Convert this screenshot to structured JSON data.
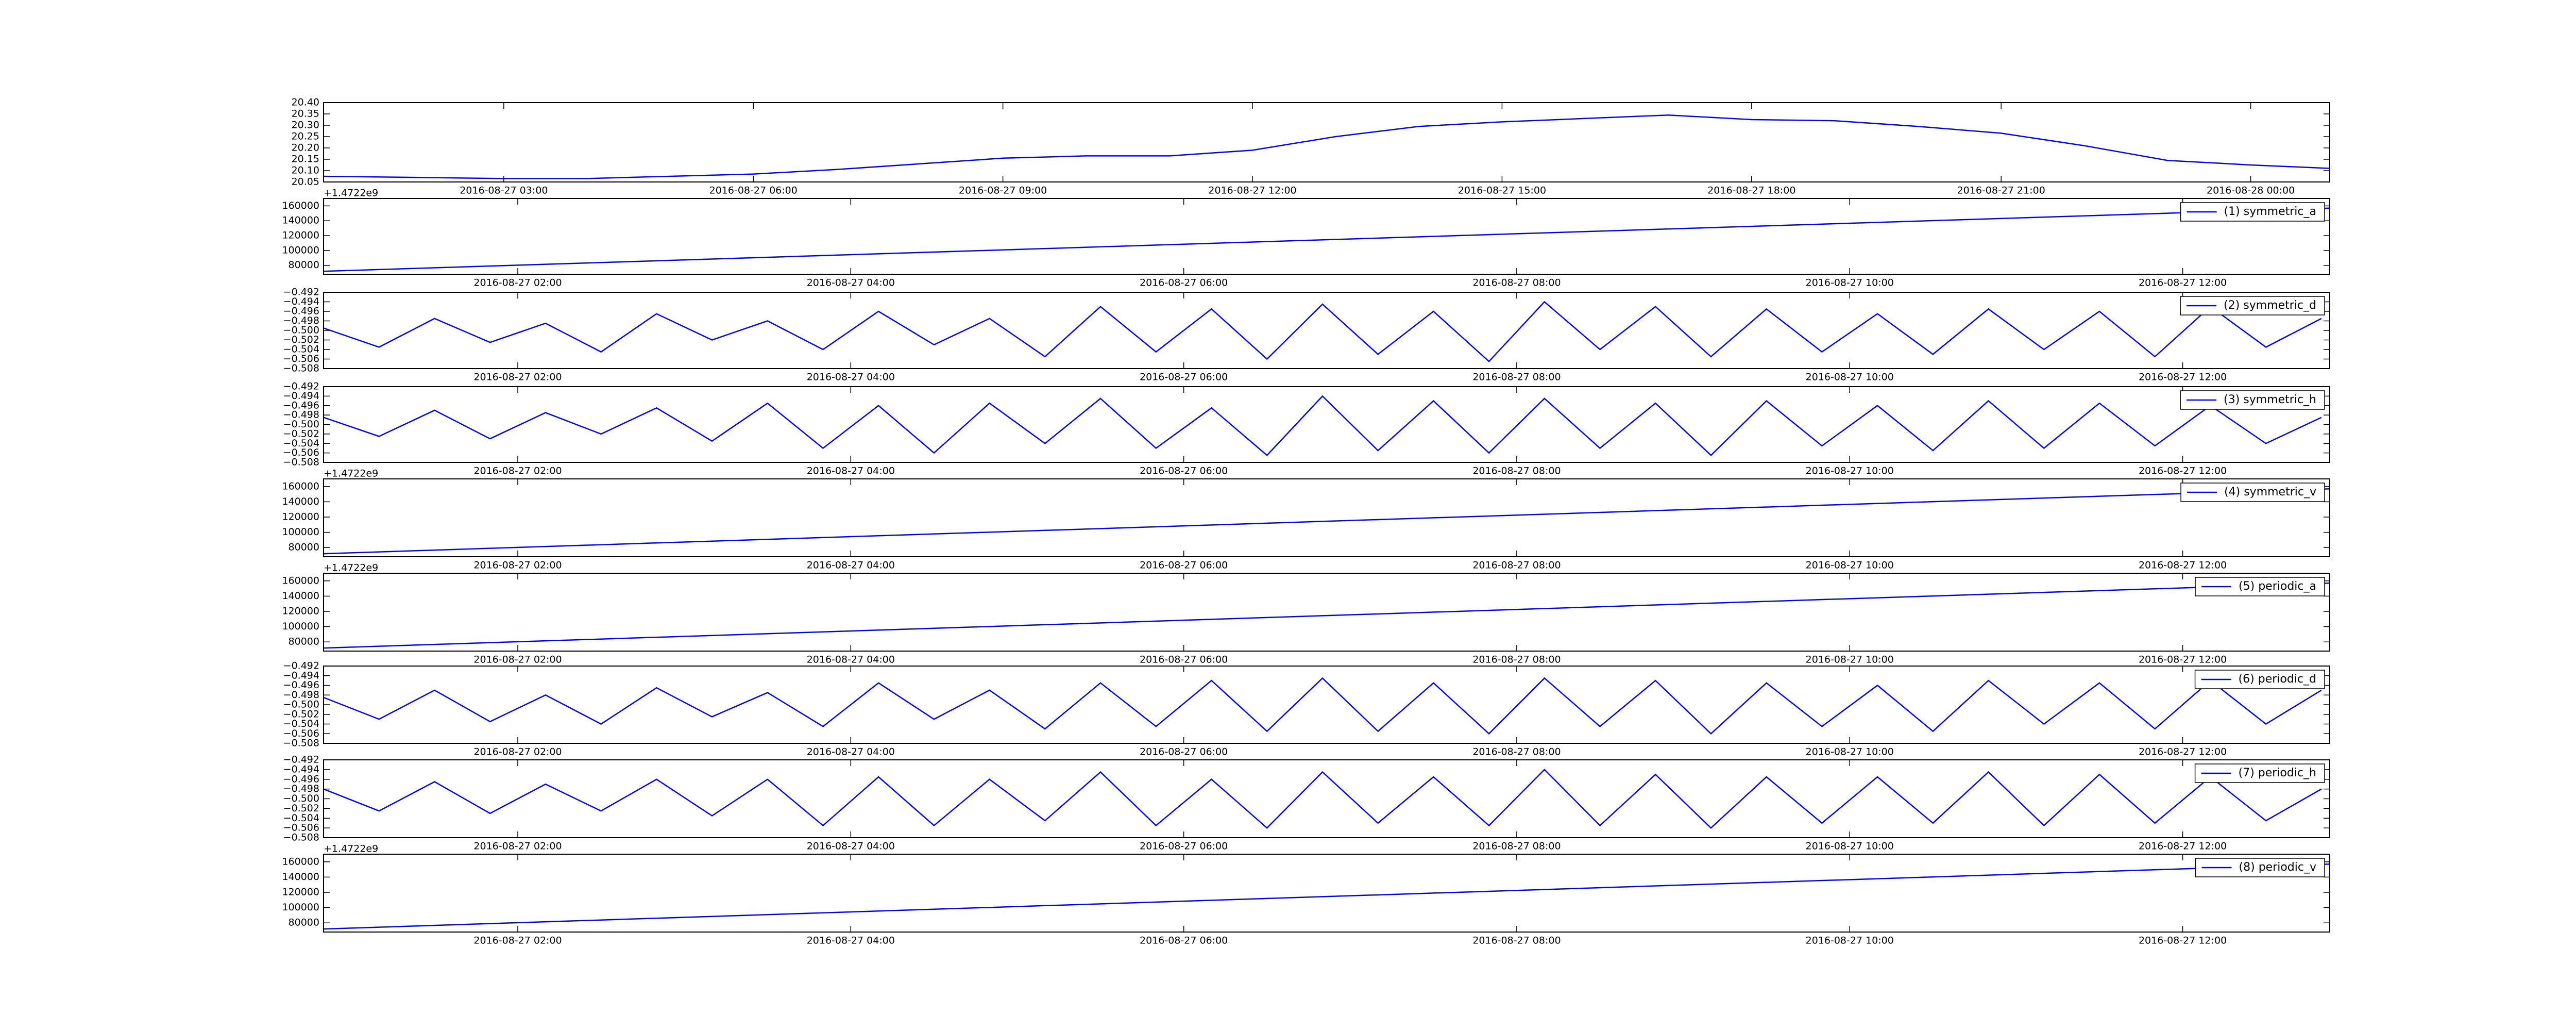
{
  "chart_data": [
    {
      "type": "line",
      "x": [
        "2016-08-27 00:50",
        "2016-08-27 02:00",
        "2016-08-27 03:00",
        "2016-08-27 04:00",
        "2016-08-27 05:00",
        "2016-08-27 06:00",
        "2016-08-27 07:00",
        "2016-08-27 08:00",
        "2016-08-27 09:00",
        "2016-08-27 10:00",
        "2016-08-27 11:00",
        "2016-08-27 12:00",
        "2016-08-27 13:00",
        "2016-08-27 14:00",
        "2016-08-27 15:00",
        "2016-08-27 16:00",
        "2016-08-27 17:00",
        "2016-08-27 18:00",
        "2016-08-27 19:00",
        "2016-08-27 20:00",
        "2016-08-27 21:00",
        "2016-08-27 22:00",
        "2016-08-27 23:00",
        "2016-08-28 00:00",
        "2016-08-28 00:57"
      ],
      "series": [
        {
          "color": "#0000ff",
          "values": [
            20.075,
            20.07,
            20.065,
            20.065,
            20.075,
            20.085,
            20.105,
            20.13,
            20.155,
            20.165,
            20.165,
            20.19,
            20.25,
            20.295,
            20.315,
            20.33,
            20.345,
            20.325,
            20.32,
            20.295,
            20.265,
            20.21,
            20.145,
            20.125,
            20.11
          ]
        }
      ],
      "xlim": [
        "2016-08-27 00:50",
        "2016-08-28 00:57"
      ],
      "ylim": [
        20.05,
        20.4
      ],
      "xticks": [
        "2016-08-27 03:00",
        "2016-08-27 06:00",
        "2016-08-27 09:00",
        "2016-08-27 12:00",
        "2016-08-27 15:00",
        "2016-08-27 18:00",
        "2016-08-27 21:00",
        "2016-08-28 00:00"
      ],
      "yticks": [
        20.05,
        {
          "value": 20.1,
          "label": "20.10"
        },
        20.15,
        {
          "value": 20.2,
          "label": "20.20"
        },
        20.25,
        {
          "value": 20.3,
          "label": "20.30"
        },
        20.35,
        {
          "value": 20.4,
          "label": "20.40"
        }
      ]
    },
    {
      "type": "line",
      "x": [
        "2016-08-27 00:50",
        "2016-08-27 12:53"
      ],
      "series": [
        {
          "name": "(1) symmetric_a",
          "color": "#0000ff",
          "values": [
            72000,
            157000
          ]
        }
      ],
      "xlim": [
        "2016-08-27 00:50",
        "2016-08-27 12:53"
      ],
      "ylim": [
        68000,
        170000
      ],
      "xticks": [
        "2016-08-27 02:00",
        "2016-08-27 04:00",
        "2016-08-27 06:00",
        "2016-08-27 08:00",
        "2016-08-27 10:00",
        "2016-08-27 12:00"
      ],
      "yticks": [
        80000,
        100000,
        120000,
        140000,
        160000
      ],
      "y_offset_label": "+1.4722e9",
      "legend": "upper right"
    },
    {
      "type": "line",
      "x": [
        "2016-08-27 00:50",
        "2016-08-27 01:10",
        "2016-08-27 01:30",
        "2016-08-27 01:50",
        "2016-08-27 02:10",
        "2016-08-27 02:30",
        "2016-08-27 02:50",
        "2016-08-27 03:10",
        "2016-08-27 03:30",
        "2016-08-27 03:50",
        "2016-08-27 04:10",
        "2016-08-27 04:30",
        "2016-08-27 04:50",
        "2016-08-27 05:10",
        "2016-08-27 05:30",
        "2016-08-27 05:50",
        "2016-08-27 06:10",
        "2016-08-27 06:30",
        "2016-08-27 06:50",
        "2016-08-27 07:10",
        "2016-08-27 07:30",
        "2016-08-27 07:50",
        "2016-08-27 08:10",
        "2016-08-27 08:30",
        "2016-08-27 08:50",
        "2016-08-27 09:10",
        "2016-08-27 09:30",
        "2016-08-27 09:50",
        "2016-08-27 10:10",
        "2016-08-27 10:30",
        "2016-08-27 10:50",
        "2016-08-27 11:10",
        "2016-08-27 11:30",
        "2016-08-27 11:50",
        "2016-08-27 12:10",
        "2016-08-27 12:30",
        "2016-08-27 12:50"
      ],
      "series": [
        {
          "name": "(2) symmetric_d",
          "color": "#0000ff",
          "values": [
            -0.4995,
            -0.5035,
            -0.4975,
            -0.5025,
            -0.4985,
            -0.5045,
            -0.4965,
            -0.502,
            -0.498,
            -0.504,
            -0.496,
            -0.503,
            -0.4975,
            -0.5055,
            -0.495,
            -0.5045,
            -0.4955,
            -0.506,
            -0.4945,
            -0.505,
            -0.496,
            -0.5065,
            -0.494,
            -0.504,
            -0.495,
            -0.5055,
            -0.4955,
            -0.5045,
            -0.4965,
            -0.505,
            -0.4955,
            -0.504,
            -0.496,
            -0.5055,
            -0.495,
            -0.5035,
            -0.4975
          ]
        }
      ],
      "xlim": [
        "2016-08-27 00:50",
        "2016-08-27 12:53"
      ],
      "ylim": [
        -0.508,
        -0.492
      ],
      "xticks": [
        "2016-08-27 02:00",
        "2016-08-27 04:00",
        "2016-08-27 06:00",
        "2016-08-27 08:00",
        "2016-08-27 10:00",
        "2016-08-27 12:00"
      ],
      "yticks": [
        {
          "value": -0.492,
          "label": "−0.492"
        },
        {
          "value": -0.494,
          "label": "−0.494"
        },
        {
          "value": -0.496,
          "label": "−0.496"
        },
        {
          "value": -0.498,
          "label": "−0.498"
        },
        {
          "value": -0.5,
          "label": "−0.500"
        },
        {
          "value": -0.502,
          "label": "−0.502"
        },
        {
          "value": -0.504,
          "label": "−0.504"
        },
        {
          "value": -0.506,
          "label": "−0.506"
        },
        {
          "value": -0.508,
          "label": "−0.508"
        }
      ],
      "legend": "upper right"
    },
    {
      "type": "line",
      "x": [
        "2016-08-27 00:50",
        "2016-08-27 01:10",
        "2016-08-27 01:30",
        "2016-08-27 01:50",
        "2016-08-27 02:10",
        "2016-08-27 02:30",
        "2016-08-27 02:50",
        "2016-08-27 03:10",
        "2016-08-27 03:30",
        "2016-08-27 03:50",
        "2016-08-27 04:10",
        "2016-08-27 04:30",
        "2016-08-27 04:50",
        "2016-08-27 05:10",
        "2016-08-27 05:30",
        "2016-08-27 05:50",
        "2016-08-27 06:10",
        "2016-08-27 06:30",
        "2016-08-27 06:50",
        "2016-08-27 07:10",
        "2016-08-27 07:30",
        "2016-08-27 07:50",
        "2016-08-27 08:10",
        "2016-08-27 08:30",
        "2016-08-27 08:50",
        "2016-08-27 09:10",
        "2016-08-27 09:30",
        "2016-08-27 09:50",
        "2016-08-27 10:10",
        "2016-08-27 10:30",
        "2016-08-27 10:50",
        "2016-08-27 11:10",
        "2016-08-27 11:30",
        "2016-08-27 11:50",
        "2016-08-27 12:10",
        "2016-08-27 12:30",
        "2016-08-27 12:50"
      ],
      "series": [
        {
          "name": "(3) symmetric_h",
          "color": "#0000ff",
          "values": [
            -0.4985,
            -0.5025,
            -0.497,
            -0.503,
            -0.4975,
            -0.502,
            -0.4965,
            -0.5035,
            -0.4955,
            -0.505,
            -0.496,
            -0.506,
            -0.4955,
            -0.504,
            -0.4945,
            -0.505,
            -0.4965,
            -0.5065,
            -0.494,
            -0.5055,
            -0.495,
            -0.506,
            -0.4945,
            -0.505,
            -0.4955,
            -0.5065,
            -0.495,
            -0.5045,
            -0.496,
            -0.5055,
            -0.495,
            -0.505,
            -0.4955,
            -0.5045,
            -0.496,
            -0.504,
            -0.4985
          ]
        }
      ],
      "xlim": [
        "2016-08-27 00:50",
        "2016-08-27 12:53"
      ],
      "ylim": [
        -0.508,
        -0.492
      ],
      "xticks": [
        "2016-08-27 02:00",
        "2016-08-27 04:00",
        "2016-08-27 06:00",
        "2016-08-27 08:00",
        "2016-08-27 10:00",
        "2016-08-27 12:00"
      ],
      "yticks": [
        {
          "value": -0.492,
          "label": "−0.492"
        },
        {
          "value": -0.494,
          "label": "−0.494"
        },
        {
          "value": -0.496,
          "label": "−0.496"
        },
        {
          "value": -0.498,
          "label": "−0.498"
        },
        {
          "value": -0.5,
          "label": "−0.500"
        },
        {
          "value": -0.502,
          "label": "−0.502"
        },
        {
          "value": -0.504,
          "label": "−0.504"
        },
        {
          "value": -0.506,
          "label": "−0.506"
        },
        {
          "value": -0.508,
          "label": "−0.508"
        }
      ],
      "legend": "upper right"
    },
    {
      "type": "line",
      "x": [
        "2016-08-27 00:50",
        "2016-08-27 12:53"
      ],
      "series": [
        {
          "name": "(4) symmetric_v",
          "color": "#0000ff",
          "values": [
            72000,
            157000
          ]
        }
      ],
      "xlim": [
        "2016-08-27 00:50",
        "2016-08-27 12:53"
      ],
      "ylim": [
        68000,
        170000
      ],
      "xticks": [
        "2016-08-27 02:00",
        "2016-08-27 04:00",
        "2016-08-27 06:00",
        "2016-08-27 08:00",
        "2016-08-27 10:00",
        "2016-08-27 12:00"
      ],
      "yticks": [
        80000,
        100000,
        120000,
        140000,
        160000
      ],
      "y_offset_label": "+1.4722e9",
      "legend": "upper right"
    },
    {
      "type": "line",
      "x": [
        "2016-08-27 00:50",
        "2016-08-27 12:53"
      ],
      "series": [
        {
          "name": "(5) periodic_a",
          "color": "#0000ff",
          "values": [
            72000,
            157000
          ]
        }
      ],
      "xlim": [
        "2016-08-27 00:50",
        "2016-08-27 12:53"
      ],
      "ylim": [
        68000,
        170000
      ],
      "xticks": [
        "2016-08-27 02:00",
        "2016-08-27 04:00",
        "2016-08-27 06:00",
        "2016-08-27 08:00",
        "2016-08-27 10:00",
        "2016-08-27 12:00"
      ],
      "yticks": [
        80000,
        100000,
        120000,
        140000,
        160000
      ],
      "y_offset_label": "+1.4722e9",
      "legend": "upper right"
    },
    {
      "type": "line",
      "x": [
        "2016-08-27 00:50",
        "2016-08-27 01:10",
        "2016-08-27 01:30",
        "2016-08-27 01:50",
        "2016-08-27 02:10",
        "2016-08-27 02:30",
        "2016-08-27 02:50",
        "2016-08-27 03:10",
        "2016-08-27 03:30",
        "2016-08-27 03:50",
        "2016-08-27 04:10",
        "2016-08-27 04:30",
        "2016-08-27 04:50",
        "2016-08-27 05:10",
        "2016-08-27 05:30",
        "2016-08-27 05:50",
        "2016-08-27 06:10",
        "2016-08-27 06:30",
        "2016-08-27 06:50",
        "2016-08-27 07:10",
        "2016-08-27 07:30",
        "2016-08-27 07:50",
        "2016-08-27 08:10",
        "2016-08-27 08:30",
        "2016-08-27 08:50",
        "2016-08-27 09:10",
        "2016-08-27 09:30",
        "2016-08-27 09:50",
        "2016-08-27 10:10",
        "2016-08-27 10:30",
        "2016-08-27 10:50",
        "2016-08-27 11:10",
        "2016-08-27 11:30",
        "2016-08-27 11:50",
        "2016-08-27 12:10",
        "2016-08-27 12:30",
        "2016-08-27 12:50"
      ],
      "series": [
        {
          "name": "(6) periodic_d",
          "color": "#0000ff",
          "values": [
            -0.4985,
            -0.503,
            -0.497,
            -0.5035,
            -0.498,
            -0.504,
            -0.4965,
            -0.5025,
            -0.4975,
            -0.5045,
            -0.4955,
            -0.503,
            -0.497,
            -0.505,
            -0.4955,
            -0.5045,
            -0.495,
            -0.5055,
            -0.4945,
            -0.5055,
            -0.4955,
            -0.506,
            -0.4945,
            -0.5045,
            -0.495,
            -0.506,
            -0.4955,
            -0.5045,
            -0.496,
            -0.5055,
            -0.495,
            -0.504,
            -0.4955,
            -0.505,
            -0.495,
            -0.504,
            -0.497
          ]
        }
      ],
      "xlim": [
        "2016-08-27 00:50",
        "2016-08-27 12:53"
      ],
      "ylim": [
        -0.508,
        -0.492
      ],
      "xticks": [
        "2016-08-27 02:00",
        "2016-08-27 04:00",
        "2016-08-27 06:00",
        "2016-08-27 08:00",
        "2016-08-27 10:00",
        "2016-08-27 12:00"
      ],
      "yticks": [
        {
          "value": -0.492,
          "label": "−0.492"
        },
        {
          "value": -0.494,
          "label": "−0.494"
        },
        {
          "value": -0.496,
          "label": "−0.496"
        },
        {
          "value": -0.498,
          "label": "−0.498"
        },
        {
          "value": -0.5,
          "label": "−0.500"
        },
        {
          "value": -0.502,
          "label": "−0.502"
        },
        {
          "value": -0.504,
          "label": "−0.504"
        },
        {
          "value": -0.506,
          "label": "−0.506"
        },
        {
          "value": -0.508,
          "label": "−0.508"
        }
      ],
      "legend": "upper right"
    },
    {
      "type": "line",
      "x": [
        "2016-08-27 00:50",
        "2016-08-27 01:10",
        "2016-08-27 01:30",
        "2016-08-27 01:50",
        "2016-08-27 02:10",
        "2016-08-27 02:30",
        "2016-08-27 02:50",
        "2016-08-27 03:10",
        "2016-08-27 03:30",
        "2016-08-27 03:50",
        "2016-08-27 04:10",
        "2016-08-27 04:30",
        "2016-08-27 04:50",
        "2016-08-27 05:10",
        "2016-08-27 05:30",
        "2016-08-27 05:50",
        "2016-08-27 06:10",
        "2016-08-27 06:30",
        "2016-08-27 06:50",
        "2016-08-27 07:10",
        "2016-08-27 07:30",
        "2016-08-27 07:50",
        "2016-08-27 08:10",
        "2016-08-27 08:30",
        "2016-08-27 08:50",
        "2016-08-27 09:10",
        "2016-08-27 09:30",
        "2016-08-27 09:50",
        "2016-08-27 10:10",
        "2016-08-27 10:30",
        "2016-08-27 10:50",
        "2016-08-27 11:10",
        "2016-08-27 11:30",
        "2016-08-27 11:50",
        "2016-08-27 12:10",
        "2016-08-27 12:30",
        "2016-08-27 12:50"
      ],
      "series": [
        {
          "name": "(7) periodic_h",
          "color": "#0000ff",
          "values": [
            -0.498,
            -0.5025,
            -0.4965,
            -0.503,
            -0.497,
            -0.5025,
            -0.496,
            -0.5035,
            -0.496,
            -0.5055,
            -0.4955,
            -0.5055,
            -0.496,
            -0.5045,
            -0.4945,
            -0.5055,
            -0.496,
            -0.506,
            -0.4945,
            -0.505,
            -0.4955,
            -0.5055,
            -0.494,
            -0.5055,
            -0.495,
            -0.506,
            -0.4955,
            -0.505,
            -0.4955,
            -0.505,
            -0.4945,
            -0.5055,
            -0.495,
            -0.505,
            -0.4955,
            -0.5045,
            -0.498
          ]
        }
      ],
      "xlim": [
        "2016-08-27 00:50",
        "2016-08-27 12:53"
      ],
      "ylim": [
        -0.508,
        -0.492
      ],
      "xticks": [
        "2016-08-27 02:00",
        "2016-08-27 04:00",
        "2016-08-27 06:00",
        "2016-08-27 08:00",
        "2016-08-27 10:00",
        "2016-08-27 12:00"
      ],
      "yticks": [
        {
          "value": -0.492,
          "label": "−0.492"
        },
        {
          "value": -0.494,
          "label": "−0.494"
        },
        {
          "value": -0.496,
          "label": "−0.496"
        },
        {
          "value": -0.498,
          "label": "−0.498"
        },
        {
          "value": -0.5,
          "label": "−0.500"
        },
        {
          "value": -0.502,
          "label": "−0.502"
        },
        {
          "value": -0.504,
          "label": "−0.504"
        },
        {
          "value": -0.506,
          "label": "−0.506"
        },
        {
          "value": -0.508,
          "label": "−0.508"
        }
      ],
      "legend": "upper right"
    },
    {
      "type": "line",
      "x": [
        "2016-08-27 00:50",
        "2016-08-27 12:53"
      ],
      "series": [
        {
          "name": "(8) periodic_v",
          "color": "#0000ff",
          "values": [
            72000,
            157000
          ]
        }
      ],
      "xlim": [
        "2016-08-27 00:50",
        "2016-08-27 12:53"
      ],
      "ylim": [
        68000,
        170000
      ],
      "xticks": [
        "2016-08-27 02:00",
        "2016-08-27 04:00",
        "2016-08-27 06:00",
        "2016-08-27 08:00",
        "2016-08-27 10:00",
        "2016-08-27 12:00"
      ],
      "yticks": [
        80000,
        100000,
        120000,
        140000,
        160000
      ],
      "y_offset_label": "+1.4722e9",
      "legend": "upper right"
    }
  ]
}
